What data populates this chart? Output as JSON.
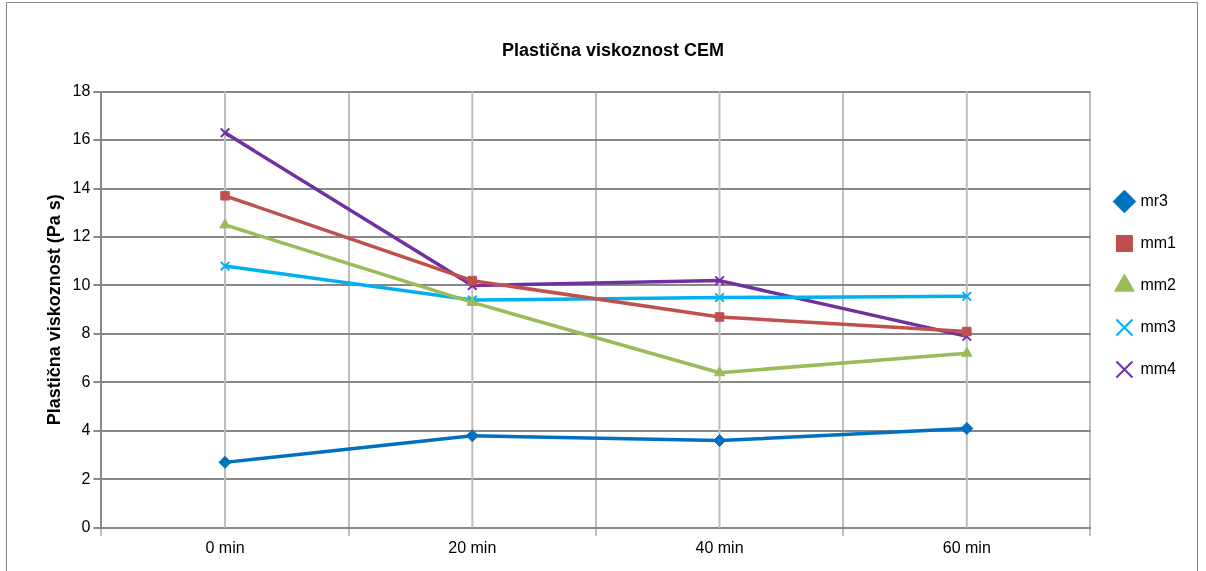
{
  "chart_data": {
    "type": "line",
    "title": "Plastična viskoznost CEM",
    "ylabel": "Plastična viskoznost (Pa s)",
    "categories": [
      "0 min",
      "20 min",
      "40 min",
      "60 min"
    ],
    "series": [
      {
        "name": "mr3",
        "color": "#0070c0",
        "marker": "diamond",
        "values": [
          2.7,
          3.8,
          3.6,
          4.1
        ]
      },
      {
        "name": "mm1",
        "color": "#c0504d",
        "marker": "square",
        "values": [
          13.7,
          10.2,
          8.7,
          8.1
        ]
      },
      {
        "name": "mm2",
        "color": "#9bbb59",
        "marker": "triangle",
        "values": [
          12.5,
          9.3,
          6.4,
          7.2
        ]
      },
      {
        "name": "mm3",
        "color": "#00b0f0",
        "marker": "cross",
        "values": [
          10.8,
          9.4,
          9.5,
          9.55
        ]
      },
      {
        "name": "mm4",
        "color": "#7030a0",
        "marker": "cross",
        "values": [
          16.3,
          10.0,
          10.2,
          7.9
        ]
      }
    ],
    "ylim": [
      0,
      18
    ],
    "yticks": [
      0,
      2,
      4,
      6,
      8,
      10,
      12,
      14,
      16,
      18
    ],
    "grid": true,
    "legend": "right"
  }
}
